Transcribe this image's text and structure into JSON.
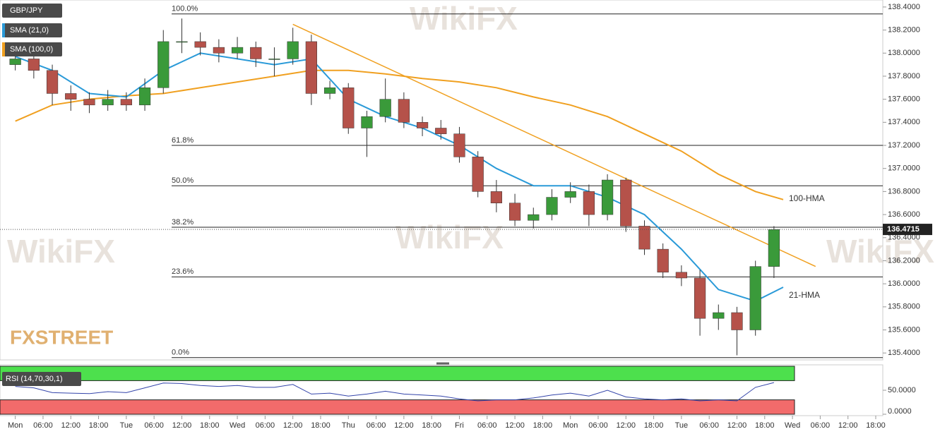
{
  "chart_data": {
    "type": "candlestick",
    "title": "GBP/JPY",
    "indicators": [
      "SMA (21,0)",
      "SMA (100,0)"
    ],
    "brand": "FXSTREET",
    "up_color": "#3a9a3a",
    "down_color": "#b5524a",
    "x": [
      0,
      4,
      8,
      12,
      16,
      20,
      24,
      28,
      32,
      36,
      40,
      44,
      48,
      52,
      56,
      60,
      64,
      68,
      72,
      76,
      80,
      84,
      88,
      92,
      96,
      100,
      104,
      108,
      112,
      116,
      120,
      124,
      128,
      132,
      136,
      140,
      144,
      148,
      152,
      156,
      160,
      164
    ],
    "ohlc": [
      [
        137.9,
        138.05,
        137.85,
        137.95
      ],
      [
        137.95,
        138.0,
        137.78,
        137.85
      ],
      [
        137.85,
        137.9,
        137.55,
        137.65
      ],
      [
        137.65,
        137.72,
        137.5,
        137.6
      ],
      [
        137.6,
        137.66,
        137.48,
        137.55
      ],
      [
        137.55,
        137.68,
        137.5,
        137.6
      ],
      [
        137.6,
        137.66,
        137.5,
        137.55
      ],
      [
        137.55,
        137.78,
        137.5,
        137.7
      ],
      [
        137.7,
        138.2,
        137.65,
        138.1
      ],
      [
        138.1,
        138.3,
        138.0,
        138.1
      ],
      [
        138.1,
        138.18,
        137.98,
        138.05
      ],
      [
        138.05,
        138.12,
        137.92,
        138.0
      ],
      [
        138.0,
        138.14,
        137.95,
        138.05
      ],
      [
        138.05,
        138.1,
        137.88,
        137.95
      ],
      [
        137.95,
        138.05,
        137.8,
        137.95
      ],
      [
        137.95,
        138.22,
        137.9,
        138.1
      ],
      [
        138.1,
        138.16,
        137.55,
        137.65
      ],
      [
        137.65,
        137.76,
        137.6,
        137.7
      ],
      [
        137.7,
        137.74,
        137.3,
        137.35
      ],
      [
        137.35,
        137.5,
        137.1,
        137.45
      ],
      [
        137.45,
        137.78,
        137.4,
        137.6
      ],
      [
        137.6,
        137.66,
        137.35,
        137.4
      ],
      [
        137.4,
        137.45,
        137.28,
        137.35
      ],
      [
        137.35,
        137.42,
        137.25,
        137.3
      ],
      [
        137.3,
        137.36,
        137.05,
        137.1
      ],
      [
        137.1,
        137.15,
        136.75,
        136.8
      ],
      [
        136.8,
        136.9,
        136.62,
        136.7
      ],
      [
        136.7,
        136.78,
        136.5,
        136.55
      ],
      [
        136.55,
        136.66,
        136.48,
        136.6
      ],
      [
        136.6,
        136.82,
        136.55,
        136.75
      ],
      [
        136.75,
        136.88,
        136.7,
        136.8
      ],
      [
        136.8,
        136.86,
        136.5,
        136.6
      ],
      [
        136.6,
        136.95,
        136.55,
        136.9
      ],
      [
        136.9,
        136.92,
        136.45,
        136.5
      ],
      [
        136.5,
        136.55,
        136.25,
        136.3
      ],
      [
        136.3,
        136.35,
        136.05,
        136.1
      ],
      [
        136.1,
        136.16,
        135.98,
        136.05
      ],
      [
        136.05,
        136.12,
        135.55,
        135.7
      ],
      [
        135.7,
        135.82,
        135.6,
        135.75
      ],
      [
        135.75,
        135.8,
        135.38,
        135.6
      ],
      [
        135.6,
        136.2,
        135.55,
        136.15
      ],
      [
        136.15,
        136.5,
        136.05,
        136.47
      ]
    ],
    "last_price": 136.4715,
    "series": [
      {
        "name": "100-HMA",
        "color": "#f0a020",
        "x": [
          0,
          8,
          16,
          24,
          32,
          40,
          48,
          56,
          64,
          72,
          80,
          88,
          96,
          104,
          112,
          120,
          128,
          136,
          144,
          152,
          160,
          166
        ],
        "values": [
          137.41,
          137.55,
          137.6,
          137.63,
          137.65,
          137.7,
          137.75,
          137.8,
          137.85,
          137.85,
          137.82,
          137.78,
          137.75,
          137.7,
          137.62,
          137.55,
          137.45,
          137.3,
          137.15,
          136.95,
          136.8,
          136.73
        ]
      },
      {
        "name": "21-HMA",
        "color": "#2a9ad8",
        "x": [
          0,
          8,
          16,
          24,
          32,
          40,
          48,
          56,
          64,
          72,
          80,
          88,
          96,
          104,
          112,
          120,
          128,
          136,
          144,
          152,
          160,
          166
        ],
        "values": [
          137.97,
          137.85,
          137.65,
          137.62,
          137.85,
          138.0,
          137.95,
          137.9,
          137.95,
          137.6,
          137.45,
          137.35,
          137.2,
          137.0,
          136.85,
          136.85,
          136.75,
          136.6,
          136.3,
          135.95,
          135.85,
          135.97
        ]
      }
    ],
    "trendline": {
      "x": [
        60,
        173
      ],
      "values": [
        138.25,
        136.15
      ],
      "color": "#f0a020"
    },
    "levels": [
      {
        "label": "100.0%",
        "value": 138.34
      },
      {
        "label": "61.8%",
        "value": 137.2
      },
      {
        "label": "50.0%",
        "value": 136.85
      },
      {
        "label": "38.2%",
        "value": 136.49
      },
      {
        "label": "23.6%",
        "value": 136.06
      },
      {
        "label": "0.0%",
        "value": 135.36
      }
    ],
    "xlim": [
      -3,
      186
    ],
    "ylim": [
      135.34,
      138.43
    ],
    "yticks": [
      {
        "value": 135.4,
        "label": "135.4000"
      },
      {
        "value": 135.6,
        "label": "135.6000"
      },
      {
        "value": 135.8,
        "label": "135.8000"
      },
      {
        "value": 136.0,
        "label": "136.0000"
      },
      {
        "value": 136.2,
        "label": "136.2000"
      },
      {
        "value": 136.4,
        "label": "136.4000"
      },
      {
        "value": 136.6,
        "label": "136.6000"
      },
      {
        "value": 136.8,
        "label": "136.8000"
      },
      {
        "value": 137.0,
        "label": "137.0000"
      },
      {
        "value": 137.2,
        "label": "137.2000"
      },
      {
        "value": 137.4,
        "label": "137.4000"
      },
      {
        "value": 137.6,
        "label": "137.6000"
      },
      {
        "value": 137.8,
        "label": "137.8000"
      },
      {
        "value": 138.0,
        "label": "138.0000"
      },
      {
        "value": 138.2,
        "label": "138.2000"
      },
      {
        "value": 138.4,
        "label": "138.4000"
      }
    ],
    "xticks": [
      {
        "value": 0,
        "label": "Mon"
      },
      {
        "value": 6,
        "label": "06:00"
      },
      {
        "value": 12,
        "label": "12:00"
      },
      {
        "value": 18,
        "label": "18:00"
      },
      {
        "value": 24,
        "label": "Tue"
      },
      {
        "value": 30,
        "label": "06:00"
      },
      {
        "value": 36,
        "label": "12:00"
      },
      {
        "value": 42,
        "label": "18:00"
      },
      {
        "value": 48,
        "label": "Wed"
      },
      {
        "value": 54,
        "label": "06:00"
      },
      {
        "value": 60,
        "label": "12:00"
      },
      {
        "value": 66,
        "label": "18:00"
      },
      {
        "value": 72,
        "label": "Thu"
      },
      {
        "value": 78,
        "label": "06:00"
      },
      {
        "value": 84,
        "label": "12:00"
      },
      {
        "value": 90,
        "label": "18:00"
      },
      {
        "value": 96,
        "label": "Fri"
      },
      {
        "value": 102,
        "label": "06:00"
      },
      {
        "value": 108,
        "label": "12:00"
      },
      {
        "value": 114,
        "label": "18:00"
      },
      {
        "value": 120,
        "label": "Mon"
      },
      {
        "value": 126,
        "label": "06:00"
      },
      {
        "value": 132,
        "label": "12:00"
      },
      {
        "value": 138,
        "label": "18:00"
      },
      {
        "value": 144,
        "label": "Tue"
      },
      {
        "value": 150,
        "label": "06:00"
      },
      {
        "value": 156,
        "label": "12:00"
      },
      {
        "value": 162,
        "label": "18:00"
      },
      {
        "value": 168,
        "label": "Wed"
      },
      {
        "value": 174,
        "label": "06:00"
      },
      {
        "value": 180,
        "label": "12:00"
      },
      {
        "value": 186,
        "label": "18:00"
      }
    ],
    "rsi": {
      "name": "RSI (14,70,30,1)",
      "color": "#3344aa",
      "values": [
        58,
        55,
        45,
        44,
        43,
        47,
        45,
        55,
        65,
        64,
        60,
        58,
        60,
        56,
        56,
        62,
        42,
        44,
        38,
        42,
        48,
        42,
        40,
        38,
        32,
        28,
        30,
        30,
        34,
        40,
        44,
        38,
        50,
        36,
        32,
        30,
        32,
        28,
        30,
        28,
        56,
        66
      ],
      "ylim": [
        0,
        100
      ],
      "upper": 70,
      "lower": 30,
      "yticks": [
        {
          "value": 0,
          "label": "0.0000"
        },
        {
          "value": 50,
          "label": "50.0000"
        }
      ]
    }
  }
}
